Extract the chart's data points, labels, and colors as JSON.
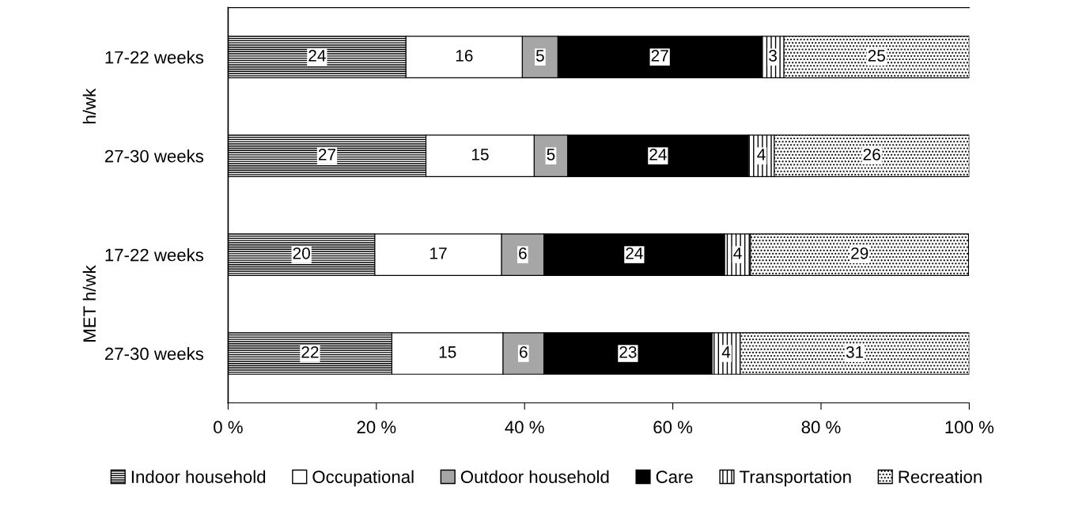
{
  "chart_data": {
    "type": "bar",
    "orientation": "horizontal",
    "stacked": true,
    "categories": [
      "17-22 weeks",
      "27-30 weeks",
      "17-22 weeks",
      "27-30 weeks"
    ],
    "series": [
      {
        "name": "Indoor household",
        "color": "#000000",
        "values": [
          24,
          26.7,
          19.8,
          22.1
        ],
        "value_labels": [
          "24",
          "27",
          "20",
          "22"
        ]
      },
      {
        "name": "Occupational",
        "color": "#ffffff",
        "values": [
          15.7,
          14.6,
          17.1,
          15
        ],
        "value_labels": [
          "16",
          "15",
          "17",
          "15"
        ]
      },
      {
        "name": "Outdoor household",
        "color": "#a6a6a6",
        "values": [
          4.8,
          4.5,
          5.7,
          5.5
        ],
        "value_labels": [
          "5",
          "5",
          "6",
          "6"
        ]
      },
      {
        "name": "Care",
        "color": "#000000",
        "values": [
          27.5,
          24.4,
          24.4,
          22.7
        ],
        "value_labels": [
          "27",
          "24",
          "24",
          "23"
        ]
      },
      {
        "name": "Transportation",
        "color": "#000000",
        "values": [
          3,
          3.5,
          3.5,
          3.8
        ],
        "value_labels": [
          "3",
          "4",
          "4",
          "4"
        ]
      },
      {
        "name": "Recreation",
        "color": "#000000",
        "values": [
          25,
          26.3,
          29.4,
          30.9
        ],
        "value_labels": [
          "25",
          "26",
          "29",
          "31"
        ]
      }
    ],
    "xlim": [
      0,
      100
    ],
    "xticks": [
      {
        "value": 0,
        "label": "0 %"
      },
      {
        "value": 20,
        "label": "20 %"
      },
      {
        "value": 40,
        "label": "40 %"
      },
      {
        "value": 60,
        "label": "60 %"
      },
      {
        "value": 80,
        "label": "80 %"
      },
      {
        "value": 100,
        "label": "100 %"
      }
    ],
    "annotations": [
      "h/wk",
      "MET h/wk"
    ],
    "grid": false,
    "legend": "bottom"
  }
}
